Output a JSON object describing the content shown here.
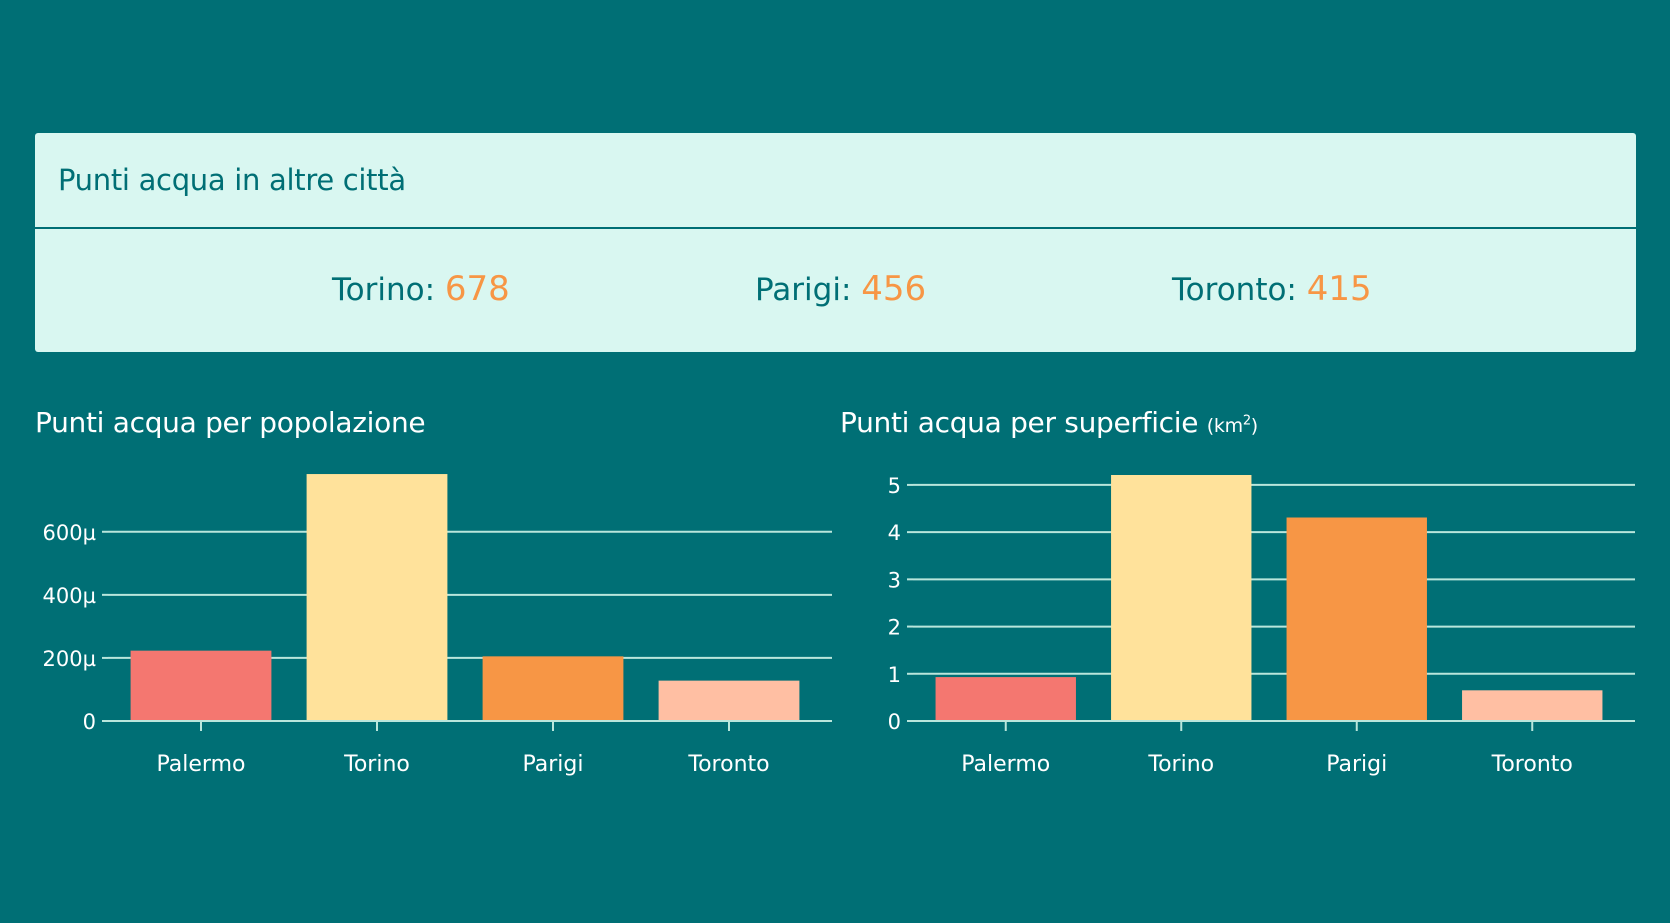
{
  "panel": {
    "title": "Punti acqua in altre città",
    "stats": [
      {
        "label": "Torino:",
        "value": "678"
      },
      {
        "label": "Parigi:",
        "value": "456"
      },
      {
        "label": "Toronto:",
        "value": "415"
      }
    ]
  },
  "colors": {
    "background": "#006f75",
    "panel": "#d9f7f1",
    "accent": "#f79645",
    "gridline": "#b9e6dc",
    "bars": [
      "#f47770",
      "#ffe29b",
      "#f79645",
      "#ffbfa3"
    ]
  },
  "chart_data": [
    {
      "type": "bar",
      "title": "Punti acqua per popolazione",
      "categories": [
        "Palermo",
        "Torino",
        "Parigi",
        "Toronto"
      ],
      "values": [
        0.000223,
        0.000783,
        0.000205,
        0.000128
      ],
      "ylim": [
        0,
        0.00078
      ],
      "yticks": [
        0,
        0.0002,
        0.0004,
        0.0006
      ],
      "ytick_labels": [
        "0",
        "200µ",
        "400µ",
        "600µ"
      ],
      "xlabel": "",
      "ylabel": "",
      "grid": true,
      "legend": "none"
    },
    {
      "type": "bar",
      "title": "Punti acqua per superficie",
      "title_unit": "(km",
      "title_unit_sup": "2",
      "title_unit_close": ")",
      "categories": [
        "Palermo",
        "Torino",
        "Parigi",
        "Toronto"
      ],
      "values": [
        0.93,
        5.21,
        4.31,
        0.65
      ],
      "ylim": [
        0,
        5.21
      ],
      "yticks": [
        0,
        1,
        2,
        3,
        4,
        5
      ],
      "ytick_labels": [
        "0",
        "1",
        "2",
        "3",
        "4",
        "5"
      ],
      "xlabel": "",
      "ylabel": "",
      "grid": true,
      "legend": "none"
    }
  ]
}
